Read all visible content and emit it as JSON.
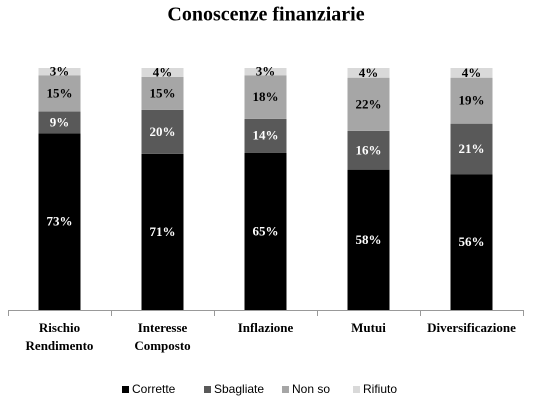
{
  "chart_data": {
    "type": "bar",
    "stacked": "percent",
    "title": "Conoscenze finanziarie",
    "categories": [
      "Rischio Rendimento",
      "Interesse Composto",
      "Inflazione",
      "Mutui",
      "Diversificazione"
    ],
    "series": [
      {
        "name": "Corrette",
        "color": "#000000",
        "values": [
          73,
          71,
          65,
          58,
          56
        ],
        "value_labels": [
          "73%",
          "71%",
          "65%",
          "58%",
          "56%"
        ]
      },
      {
        "name": "Sbagliate",
        "color": "#595959",
        "values": [
          9,
          20,
          14,
          16,
          21
        ],
        "value_labels": [
          "9%",
          "20%",
          "14%",
          "16%",
          "21%"
        ]
      },
      {
        "name": "Non so",
        "color": "#a6a6a6",
        "values": [
          15,
          15,
          18,
          22,
          19
        ],
        "value_labels": [
          "15%",
          "15%",
          "18%",
          "22%",
          "19%"
        ]
      },
      {
        "name": "Rifiuto",
        "color": "#d9d9d9",
        "values": [
          3,
          4,
          3,
          4,
          4
        ],
        "value_labels": [
          "3%",
          "4%",
          "3%",
          "4%",
          "4%"
        ]
      }
    ],
    "legend": "bottom"
  }
}
